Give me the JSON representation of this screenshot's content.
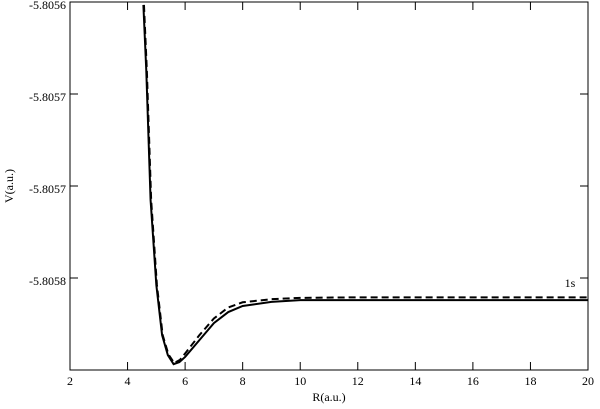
{
  "chart_data": {
    "type": "line",
    "x_label": "R(a.u.)",
    "y_label": "V(a.u.)",
    "annotation": "1s",
    "xlim": [
      2,
      20
    ],
    "xticks": [
      2,
      4,
      6,
      8,
      10,
      12,
      14,
      16,
      18,
      20
    ],
    "ylim": [
      -5.80582,
      -5.80562
    ],
    "yticks": [
      {
        "value": -5.80562,
        "label": "-5.8056"
      },
      {
        "value": -5.80567,
        "label": "-5.8057"
      },
      {
        "value": -5.80572,
        "label": "-5.8057"
      },
      {
        "value": -5.80577,
        "label": "-5.8058"
      }
    ],
    "series": [
      {
        "color": "#000000",
        "dash": false,
        "x": [
          4.55,
          4.65,
          4.8,
          5.0,
          5.2,
          5.4,
          5.6,
          5.8,
          6.0,
          6.5,
          7.0,
          7.5,
          8.0,
          9.0,
          10,
          12,
          14,
          16,
          18,
          20
        ],
        "values": [
          -5.8056216,
          -5.805657,
          -5.8057276,
          -5.8057738,
          -5.805801,
          -5.8058119,
          -5.8058168,
          -5.8058157,
          -5.8058129,
          -5.8058037,
          -5.8057945,
          -5.8057885,
          -5.8057852,
          -5.805783,
          -5.805782,
          -5.805782,
          -5.805782,
          -5.805782,
          -5.805782,
          -5.805782
        ]
      },
      {
        "color": "#000000",
        "dash": true,
        "x": [
          4.57,
          4.67,
          4.82,
          5.02,
          5.22,
          5.42,
          5.62,
          5.82,
          6.0,
          6.5,
          7.0,
          7.5,
          8.0,
          9.0,
          10,
          12,
          14,
          16,
          18,
          20
        ],
        "values": [
          -5.8056216,
          -5.805657,
          -5.8057276,
          -5.8057738,
          -5.805801,
          -5.8058115,
          -5.8058162,
          -5.8058145,
          -5.805811,
          -5.805801,
          -5.805792,
          -5.805786,
          -5.8057832,
          -5.8057815,
          -5.8057808,
          -5.8057805,
          -5.8057805,
          -5.8057805,
          -5.8057805,
          -5.8057805
        ]
      }
    ]
  }
}
